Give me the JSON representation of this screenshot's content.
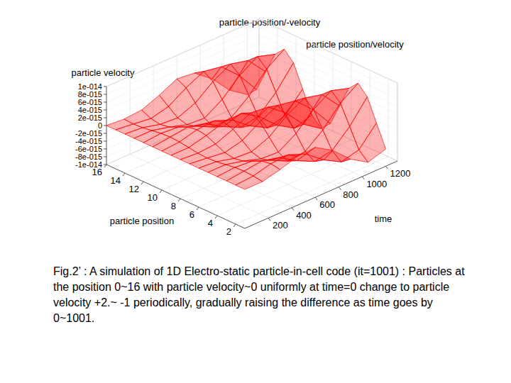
{
  "chart_data": {
    "type": "surface",
    "title": "particle-position/-velocity",
    "subtitle": "particle position/velocity",
    "xlabel": "particle position",
    "ylabel": "time",
    "zlabel": "particle velocity",
    "color": "#ff0000",
    "grid": true,
    "xlim": [
      1,
      16
    ],
    "xticks": [
      2,
      4,
      6,
      8,
      10,
      12,
      14,
      16
    ],
    "ylim": [
      0,
      1300
    ],
    "yticks": [
      200,
      400,
      600,
      800,
      1000,
      1200
    ],
    "zlim": [
      -1e-14,
      1e-14
    ],
    "zticks": [
      {
        "value": 1e-14,
        "label": "1e-014"
      },
      {
        "value": 8e-15,
        "label": "8e-015"
      },
      {
        "value": 6e-15,
        "label": "6e-015"
      },
      {
        "value": 4e-15,
        "label": "4e-015"
      },
      {
        "value": 2e-15,
        "label": "2e-015"
      },
      0,
      {
        "value": -2e-15,
        "label": "-2e-015"
      },
      {
        "value": -4e-15,
        "label": "-4e-015"
      },
      {
        "value": -6e-15,
        "label": "-6e-015"
      },
      {
        "value": -8e-15,
        "label": "-8e-015"
      },
      {
        "value": -1e-14,
        "label": "-1e-014"
      }
    ],
    "x": [
      1,
      2,
      3,
      4,
      5,
      6,
      7,
      8,
      9,
      10,
      11,
      12,
      13,
      14,
      15,
      16
    ],
    "y": [
      0,
      150,
      300,
      450,
      600,
      750,
      900,
      1050,
      1200
    ],
    "values": [
      [
        0,
        0,
        0,
        0,
        0,
        0,
        0,
        0,
        0,
        0,
        0,
        0,
        0,
        0,
        0,
        0
      ],
      [
        0,
        3.5e-16,
        5e-16,
        3.5e-16,
        0,
        -3.5e-16,
        -5e-16,
        -3.5e-16,
        0,
        3.5e-16,
        5e-16,
        3.5e-16,
        0,
        -3.5e-16,
        -5e-16,
        -3.5e-16
      ],
      [
        1.1e-15,
        1.5e-15,
        1.1e-15,
        0,
        -1.1e-15,
        -1.5e-15,
        -1.1e-15,
        0,
        1.1e-15,
        1.5e-15,
        1.1e-15,
        0,
        -1.1e-15,
        -1.5e-15,
        -1.1e-15,
        0
      ],
      [
        2.5e-15,
        1.8e-15,
        0,
        -1.8e-15,
        -2.5e-15,
        -1.8e-15,
        0,
        1.8e-15,
        2.5e-15,
        1.8e-15,
        0,
        -1.8e-15,
        -2.5e-15,
        -1.8e-15,
        0,
        1.8e-15
      ],
      [
        2.8e-15,
        0,
        -2.8e-15,
        -4e-15,
        -2.8e-15,
        0,
        2.8e-15,
        4e-15,
        2.8e-15,
        0,
        -2.8e-15,
        -4e-15,
        -2.8e-15,
        0,
        2.8e-15,
        4e-15
      ],
      [
        0,
        -3.5e-15,
        -5e-15,
        -3.5e-15,
        0,
        3.5e-15,
        5e-15,
        3.5e-15,
        0,
        -3.5e-15,
        -5e-15,
        -3.5e-15,
        0,
        3.5e-15,
        5e-15,
        3.5e-15
      ],
      [
        -4.2e-15,
        -6e-15,
        -4.2e-15,
        0,
        4.2e-15,
        6e-15,
        4.2e-15,
        0,
        -4.2e-15,
        -6e-15,
        -4.2e-15,
        0,
        4.2e-15,
        6e-15,
        4.2e-15,
        0
      ],
      [
        -7e-15,
        -4.9e-15,
        0,
        4.9e-15,
        7e-15,
        4.9e-15,
        0,
        -4.9e-15,
        -7e-15,
        -4.9e-15,
        0,
        4.9e-15,
        7e-15,
        4.9e-15,
        0,
        -4.9e-15
      ],
      [
        -5.6e-15,
        0,
        5.6e-15,
        8e-15,
        5.6e-15,
        0,
        -5.6e-15,
        -8e-15,
        -5.6e-15,
        0,
        5.6e-15,
        8e-15,
        5.6e-15,
        0,
        -5.6e-15,
        -8e-15
      ]
    ]
  },
  "caption": "Fig.2’ : A simulation of 1D Electro-static particle-in-cell code (it=1001) : Particles at the position 0~16 with particle velocity~0 uniformly at time=0 change to particle velocity +2.~ -1 periodically, gradually raising the difference as  time goes by 0~1001."
}
